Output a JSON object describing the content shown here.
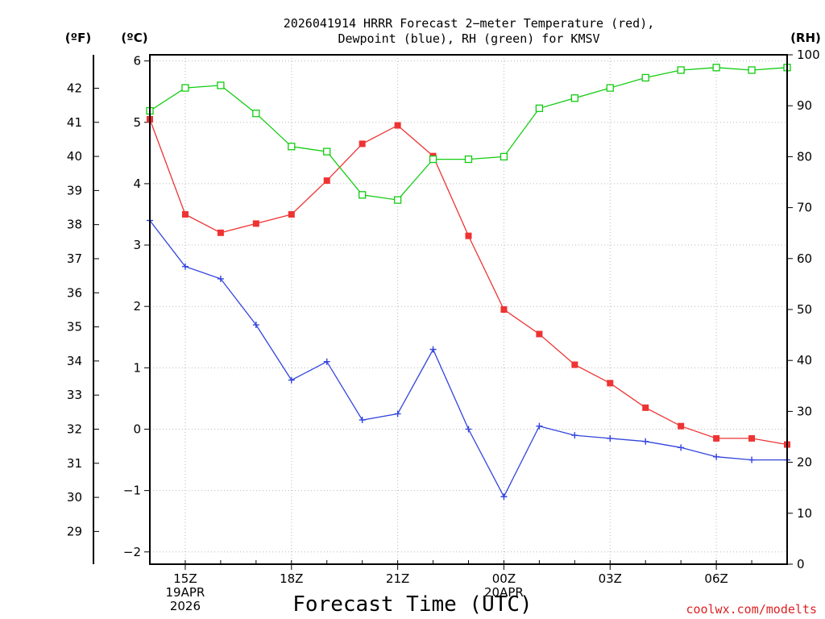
{
  "chart_data": {
    "type": "line",
    "title": "2026041914 HRRR Forecast 2−meter Temperature (red),",
    "subtitle": "Dewpoint (blue), RH (green) for KMSV",
    "xlabel": "Forecast Time (UTC)",
    "credit": "coolwx.com/modelts",
    "unit_f": "(ºF)",
    "unit_c": "(ºC)",
    "unit_rh": "(RH)",
    "x_hours": [
      14,
      15,
      16,
      17,
      18,
      19,
      20,
      21,
      22,
      23,
      24,
      25,
      26,
      27,
      28,
      29,
      30,
      31,
      32
    ],
    "x_ticks": [
      {
        "hour": 15,
        "lines": [
          "15Z",
          "19APR",
          "2026"
        ]
      },
      {
        "hour": 18,
        "lines": [
          "18Z"
        ]
      },
      {
        "hour": 21,
        "lines": [
          "21Z"
        ]
      },
      {
        "hour": 24,
        "lines": [
          "00Z",
          "20APR"
        ]
      },
      {
        "hour": 27,
        "lines": [
          "03Z"
        ]
      },
      {
        "hour": 30,
        "lines": [
          "06Z"
        ]
      }
    ],
    "celsius_ticks": [
      "6",
      "5",
      "4",
      "3",
      "2",
      "1",
      "0",
      "−1",
      "−2"
    ],
    "celsius_range": [
      -2.2,
      6.1
    ],
    "fahrenheit_ticks": [
      "42",
      "41",
      "40",
      "39",
      "38",
      "37",
      "36",
      "35",
      "34",
      "33",
      "32",
      "31",
      "30",
      "29"
    ],
    "rh_ticks": [
      "100",
      "90",
      "80",
      "70",
      "60",
      "50",
      "40",
      "30",
      "20",
      "10",
      "0"
    ],
    "rh_range": [
      0,
      100
    ],
    "series": [
      {
        "name": "Temperature",
        "unit": "C",
        "color": "#ee3333",
        "marker": "filled-square",
        "values": [
          5.05,
          3.5,
          3.2,
          3.35,
          3.5,
          4.05,
          4.65,
          4.95,
          4.45,
          3.15,
          1.95,
          1.55,
          1.05,
          0.75,
          0.35,
          0.05,
          -0.15,
          -0.15,
          -0.25
        ]
      },
      {
        "name": "Dewpoint",
        "unit": "C",
        "color": "#3344dd",
        "marker": "plus",
        "values": [
          3.4,
          2.65,
          2.45,
          1.7,
          0.8,
          1.1,
          0.15,
          0.25,
          1.3,
          0.0,
          -1.1,
          0.05,
          -0.1,
          -0.15,
          -0.2,
          -0.3,
          -0.45,
          -0.5,
          -0.5
        ]
      },
      {
        "name": "RH",
        "unit": "%",
        "color": "#11cc11",
        "marker": "open-square",
        "values": [
          89,
          93.5,
          94,
          88.5,
          82,
          81,
          72.5,
          71.5,
          79.5,
          79.5,
          80,
          89.5,
          91.5,
          93.5,
          95.5,
          97,
          97.5,
          97,
          97.5
        ]
      }
    ],
    "grid": true
  }
}
